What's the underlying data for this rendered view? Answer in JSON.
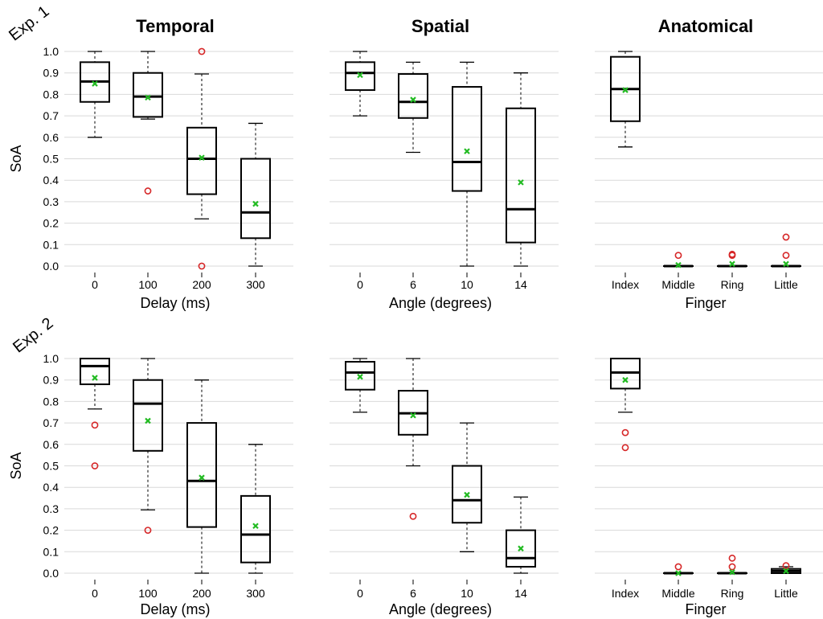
{
  "chart_data": {
    "type": "box",
    "rows": [
      {
        "label": "Exp. 1",
        "panels": [
          {
            "title": "Temporal",
            "xlabel": "Delay (ms)",
            "ylabel": "SoA",
            "ylim": [
              0,
              1
            ],
            "categories": [
              "0",
              "100",
              "200",
              "300"
            ],
            "boxes": [
              {
                "q1": 0.765,
                "median": 0.86,
                "q3": 0.95,
                "whisker_low": 0.6,
                "whisker_high": 1.0,
                "mean": 0.85,
                "outliers": []
              },
              {
                "q1": 0.695,
                "median": 0.79,
                "q3": 0.9,
                "whisker_low": 0.685,
                "whisker_high": 1.0,
                "mean": 0.785,
                "outliers": [
                  0.35
                ]
              },
              {
                "q1": 0.335,
                "median": 0.5,
                "q3": 0.645,
                "whisker_low": 0.22,
                "whisker_high": 0.895,
                "mean": 0.505,
                "outliers": [
                  1.0,
                  0.0
                ]
              },
              {
                "q1": 0.13,
                "median": 0.25,
                "q3": 0.5,
                "whisker_low": 0.0,
                "whisker_high": 0.665,
                "mean": 0.29,
                "outliers": []
              }
            ]
          },
          {
            "title": "Spatial",
            "xlabel": "Angle (degrees)",
            "ylabel": "",
            "ylim": [
              0,
              1
            ],
            "categories": [
              "0",
              "6",
              "10",
              "14"
            ],
            "boxes": [
              {
                "q1": 0.82,
                "median": 0.9,
                "q3": 0.95,
                "whisker_low": 0.7,
                "whisker_high": 1.0,
                "mean": 0.89,
                "outliers": []
              },
              {
                "q1": 0.69,
                "median": 0.765,
                "q3": 0.895,
                "whisker_low": 0.53,
                "whisker_high": 0.95,
                "mean": 0.775,
                "outliers": []
              },
              {
                "q1": 0.35,
                "median": 0.485,
                "q3": 0.835,
                "whisker_low": 0.0,
                "whisker_high": 0.95,
                "mean": 0.535,
                "outliers": []
              },
              {
                "q1": 0.11,
                "median": 0.265,
                "q3": 0.735,
                "whisker_low": 0.0,
                "whisker_high": 0.9,
                "mean": 0.39,
                "outliers": []
              }
            ]
          },
          {
            "title": "Anatomical",
            "xlabel": "Finger",
            "ylabel": "",
            "ylim": [
              0,
              1
            ],
            "categories": [
              "Index",
              "Middle",
              "Ring",
              "Little"
            ],
            "boxes": [
              {
                "q1": 0.675,
                "median": 0.825,
                "q3": 0.975,
                "whisker_low": 0.555,
                "whisker_high": 1.0,
                "mean": 0.82,
                "outliers": []
              },
              {
                "q1": 0.0,
                "median": 0.0,
                "q3": 0.0,
                "whisker_low": 0.0,
                "whisker_high": 0.0,
                "mean": 0.005,
                "outliers": [
                  0.05
                ]
              },
              {
                "q1": 0.0,
                "median": 0.0,
                "q3": 0.0,
                "whisker_low": 0.0,
                "whisker_high": 0.0,
                "mean": 0.01,
                "outliers": [
                  0.055,
                  0.05
                ]
              },
              {
                "q1": 0.0,
                "median": 0.0,
                "q3": 0.0,
                "whisker_low": 0.0,
                "whisker_high": 0.0,
                "mean": 0.01,
                "outliers": [
                  0.135,
                  0.05
                ]
              }
            ]
          }
        ]
      },
      {
        "label": "Exp. 2",
        "panels": [
          {
            "title": "",
            "xlabel": "Delay (ms)",
            "ylabel": "SoA",
            "ylim": [
              0,
              1
            ],
            "categories": [
              "0",
              "100",
              "200",
              "300"
            ],
            "boxes": [
              {
                "q1": 0.88,
                "median": 0.965,
                "q3": 1.0,
                "whisker_low": 0.765,
                "whisker_high": 1.0,
                "mean": 0.91,
                "outliers": [
                  0.69,
                  0.5
                ]
              },
              {
                "q1": 0.57,
                "median": 0.79,
                "q3": 0.9,
                "whisker_low": 0.295,
                "whisker_high": 1.0,
                "mean": 0.71,
                "outliers": [
                  0.2
                ]
              },
              {
                "q1": 0.215,
                "median": 0.43,
                "q3": 0.7,
                "whisker_low": 0.0,
                "whisker_high": 0.9,
                "mean": 0.445,
                "outliers": []
              },
              {
                "q1": 0.05,
                "median": 0.18,
                "q3": 0.36,
                "whisker_low": 0.0,
                "whisker_high": 0.6,
                "mean": 0.22,
                "outliers": []
              }
            ]
          },
          {
            "title": "",
            "xlabel": "Angle (degrees)",
            "ylabel": "",
            "ylim": [
              0,
              1
            ],
            "categories": [
              "0",
              "6",
              "10",
              "14"
            ],
            "boxes": [
              {
                "q1": 0.855,
                "median": 0.935,
                "q3": 0.985,
                "whisker_low": 0.75,
                "whisker_high": 1.0,
                "mean": 0.915,
                "outliers": []
              },
              {
                "q1": 0.645,
                "median": 0.745,
                "q3": 0.85,
                "whisker_low": 0.5,
                "whisker_high": 1.0,
                "mean": 0.735,
                "outliers": [
                  0.265
                ]
              },
              {
                "q1": 0.235,
                "median": 0.34,
                "q3": 0.5,
                "whisker_low": 0.1,
                "whisker_high": 0.7,
                "mean": 0.365,
                "outliers": []
              },
              {
                "q1": 0.03,
                "median": 0.07,
                "q3": 0.2,
                "whisker_low": 0.0,
                "whisker_high": 0.355,
                "mean": 0.115,
                "outliers": []
              }
            ]
          },
          {
            "title": "",
            "xlabel": "Finger",
            "ylabel": "",
            "ylim": [
              0,
              1
            ],
            "categories": [
              "Index",
              "Middle",
              "Ring",
              "Little"
            ],
            "boxes": [
              {
                "q1": 0.86,
                "median": 0.935,
                "q3": 1.0,
                "whisker_low": 0.75,
                "whisker_high": 1.0,
                "mean": 0.9,
                "outliers": [
                  0.655,
                  0.585
                ]
              },
              {
                "q1": 0.0,
                "median": 0.0,
                "q3": 0.0,
                "whisker_low": 0.0,
                "whisker_high": 0.0,
                "mean": 0.0,
                "outliers": [
                  0.03
                ]
              },
              {
                "q1": 0.0,
                "median": 0.0,
                "q3": 0.0,
                "whisker_low": 0.0,
                "whisker_high": 0.0,
                "mean": 0.005,
                "outliers": [
                  0.07,
                  0.03
                ]
              },
              {
                "q1": 0.0,
                "median": 0.01,
                "q3": 0.02,
                "whisker_low": 0.0,
                "whisker_high": 0.03,
                "mean": 0.01,
                "outliers": [
                  0.035
                ]
              }
            ]
          }
        ]
      }
    ],
    "yticks": [
      "0.0",
      "0.1",
      "0.2",
      "0.3",
      "0.4",
      "0.5",
      "0.6",
      "0.7",
      "0.8",
      "0.9",
      "1.0"
    ],
    "grid": true,
    "colors": {
      "outlier": "#d62728",
      "mean": "#22bb22",
      "box": "#000000",
      "grid": "#d9d9d9"
    }
  }
}
